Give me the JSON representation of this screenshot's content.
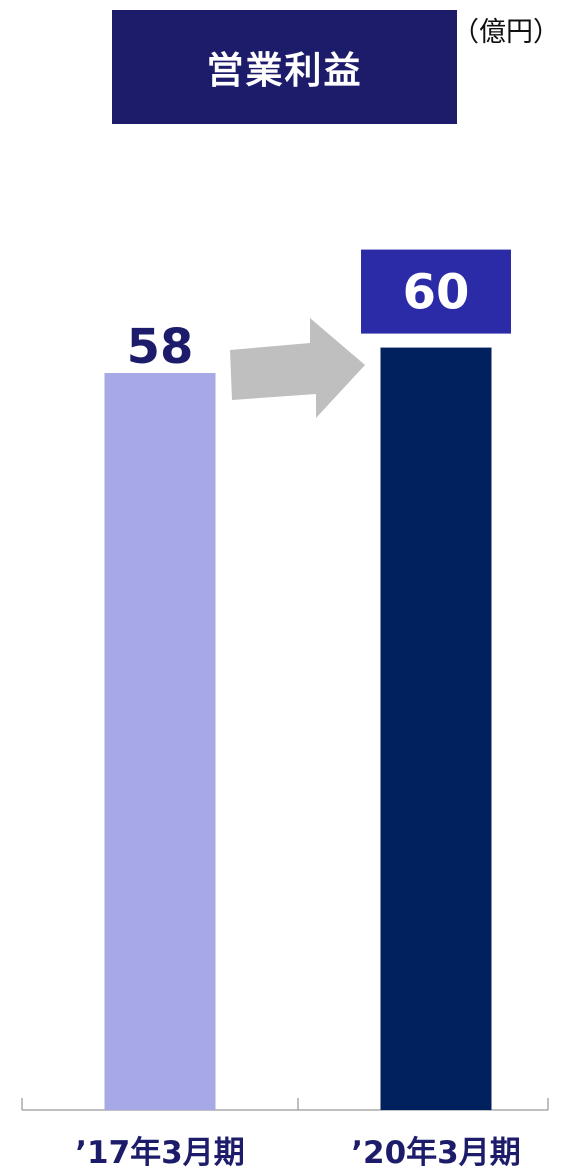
{
  "title": "営業利益",
  "unit": "（億円）",
  "colors": {
    "title_box": "#1c1c6b",
    "bar_2017": "#a7a8e6",
    "bar_2020": "#00205e",
    "value_box_2020": "#2b2ba8",
    "arrow": "#bfbfbf",
    "text": "#1c1c6b",
    "axis": "#808080"
  },
  "chart_data": {
    "type": "bar",
    "categories": [
      "’17年3月期",
      "’20年3月期"
    ],
    "values": [
      58,
      60
    ],
    "value_labels": [
      "58",
      "60"
    ],
    "annotations": [
      "arrow from ’17年3月期 to ’20年3月期"
    ],
    "title": "営業利益",
    "unit": "（億円）",
    "ylim": [
      0,
      68
    ],
    "grid": false,
    "legend": "none"
  }
}
